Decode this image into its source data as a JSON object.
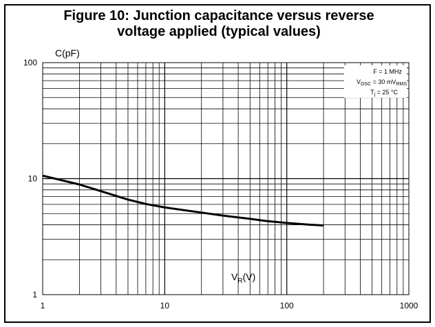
{
  "chart_data": {
    "type": "line",
    "title_line1": "Figure 10: Junction capacitance versus reverse",
    "title_line2": "voltage applied (typical values)",
    "ylabel": "C(pF)",
    "xlabel": {
      "main": "V",
      "sub": "R",
      "tail": "(V)"
    },
    "xscale": "log",
    "yscale": "log",
    "xlim": [
      1,
      1000
    ],
    "ylim": [
      1,
      100
    ],
    "xticks": [
      "1",
      "10",
      "100",
      "1000"
    ],
    "yticks": [
      "1",
      "10",
      "100"
    ],
    "grid": true,
    "conditions": {
      "freq": "F = 1 MHz",
      "vosc": {
        "main": "V",
        "sub": "OSC",
        "mid": " = 30 mV",
        "sub2": "RMS"
      },
      "temp": {
        "main": "T",
        "sub": "j",
        "tail": " = 25 °C"
      }
    },
    "series": [
      {
        "x": [
          1,
          2,
          3,
          5,
          7,
          10,
          20,
          30,
          50,
          70,
          100,
          150,
          200
        ],
        "y": [
          10.6,
          8.9,
          7.8,
          6.6,
          6.05,
          5.65,
          5.1,
          4.8,
          4.5,
          4.3,
          4.15,
          4.02,
          3.95
        ]
      }
    ]
  }
}
